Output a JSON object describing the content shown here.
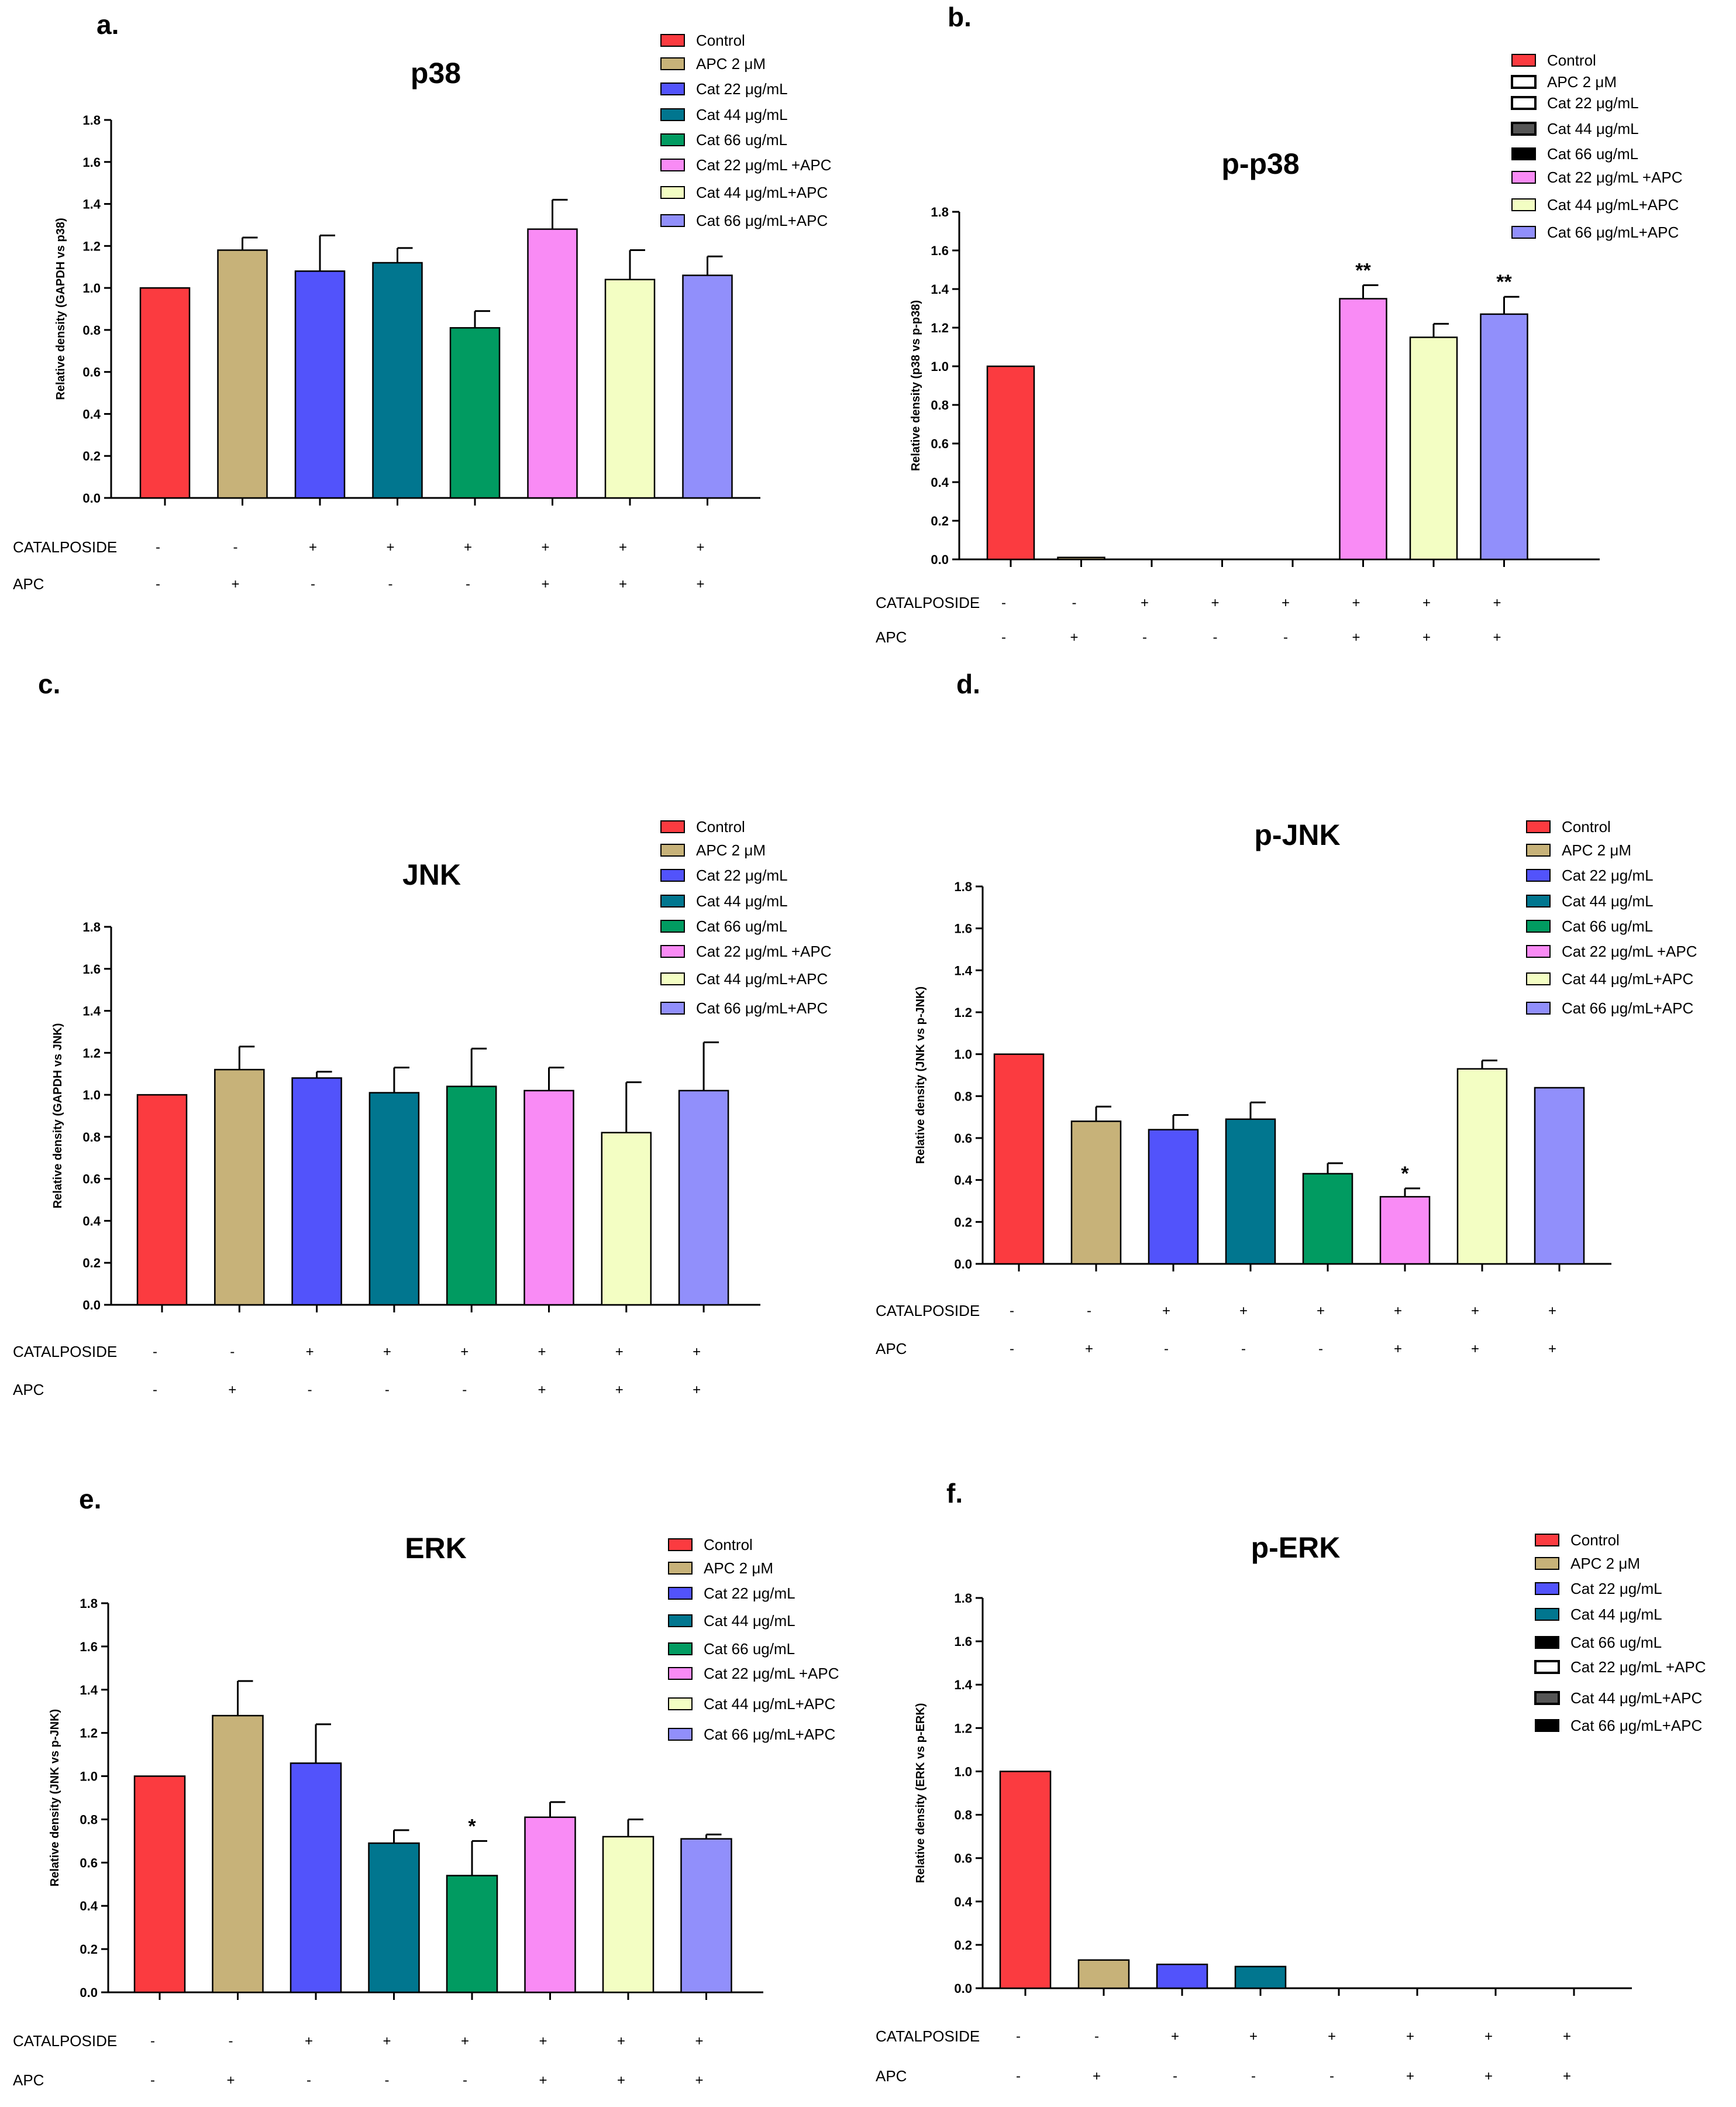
{
  "figure": {
    "categories": [
      "Control",
      "APC 2 μM",
      "Cat 22 μg/mL",
      "Cat 44 μg/mL",
      "Cat 66 ug/mL",
      "Cat 22 μg/mL +APC",
      "Cat 44 μg/mL+APC",
      "Cat 66 μg/mL+APC"
    ],
    "colors": {
      "control": "#fb3b40",
      "apc": "#c7b279",
      "cat22": "#5253fb",
      "cat44": "#01768f",
      "cat66": "#019b61",
      "cat22_apc": "#f98bf5",
      "cat44_apc": "#f3fec3",
      "cat66_apc": "#918ffb",
      "outline": "#000000"
    },
    "row_labels": {
      "catalposide": "CATALPOSIDE",
      "apc": "APC"
    },
    "catalposide_signs": [
      "-",
      "-",
      "+",
      "+",
      "+",
      "+",
      "+",
      "+"
    ],
    "apc_signs": [
      "-",
      "+",
      "-",
      "-",
      "-",
      "+",
      "+",
      "+"
    ]
  },
  "chart_data": [
    {
      "panel": "a.",
      "type": "bar",
      "title": "p38",
      "ylabel": "Relative density (GAPDH vs p38)",
      "ylim": [
        0,
        1.8
      ],
      "yticks": [
        "0.0",
        "0.2",
        "0.4",
        "0.6",
        "0.8",
        "1.0",
        "1.2",
        "1.4",
        "1.6",
        "1.8"
      ],
      "values": [
        1.0,
        1.18,
        1.08,
        1.12,
        0.81,
        1.28,
        1.04,
        1.06
      ],
      "errors": [
        0,
        0.06,
        0.17,
        0.07,
        0.08,
        0.14,
        0.14,
        0.09
      ],
      "annotations": [
        "",
        "",
        "",
        "",
        "",
        "",
        "",
        ""
      ],
      "legend_styles": [
        "fill",
        "fill",
        "fill",
        "fill",
        "fill",
        "fill",
        "fill",
        "fill"
      ]
    },
    {
      "panel": "b.",
      "type": "bar",
      "title": "p-p38",
      "ylabel": "Relative density (p38 vs p-p38)",
      "ylim": [
        0,
        1.8
      ],
      "yticks": [
        "0.0",
        "0.2",
        "0.4",
        "0.6",
        "0.8",
        "1.0",
        "1.2",
        "1.4",
        "1.6",
        "1.8"
      ],
      "values": [
        1.0,
        0.01,
        0,
        0,
        0,
        1.35,
        1.15,
        1.27
      ],
      "errors": [
        0,
        0,
        0,
        0,
        0,
        0.07,
        0.07,
        0.09
      ],
      "annotations": [
        "",
        "",
        "",
        "",
        "",
        "**",
        "",
        "**"
      ],
      "legend_styles": [
        "fill",
        "outline",
        "outline",
        "dark",
        "black",
        "fill",
        "fill",
        "fill"
      ]
    },
    {
      "panel": "c.",
      "type": "bar",
      "title": "JNK",
      "ylabel": "Relative density (GAPDH vs JNK)",
      "ylim": [
        0,
        1.8
      ],
      "yticks": [
        "0.0",
        "0.2",
        "0.4",
        "0.6",
        "0.8",
        "1.0",
        "1.2",
        "1.4",
        "1.6",
        "1.8"
      ],
      "values": [
        1.0,
        1.12,
        1.08,
        1.01,
        1.04,
        1.02,
        0.82,
        1.02
      ],
      "errors": [
        0,
        0.11,
        0.03,
        0.12,
        0.18,
        0.11,
        0.24,
        0.23
      ],
      "annotations": [
        "",
        "",
        "",
        "",
        "",
        "",
        "",
        ""
      ],
      "legend_styles": [
        "fill",
        "fill",
        "fill",
        "fill",
        "fill",
        "fill",
        "fill",
        "fill"
      ]
    },
    {
      "panel": "d.",
      "type": "bar",
      "title": "p-JNK",
      "ylabel": "Relative density (JNK vs p-JNK)",
      "ylim": [
        0,
        1.8
      ],
      "yticks": [
        "0.0",
        "0.2",
        "0.4",
        "0.6",
        "0.8",
        "1.0",
        "1.2",
        "1.4",
        "1.6",
        "1.8"
      ],
      "values": [
        1.0,
        0.68,
        0.64,
        0.69,
        0.43,
        0.32,
        0.93,
        0.84
      ],
      "errors": [
        0,
        0.07,
        0.07,
        0.08,
        0.05,
        0.04,
        0.04,
        0
      ],
      "annotations": [
        "",
        "",
        "",
        "",
        "",
        "*",
        "",
        ""
      ],
      "legend_styles": [
        "fill",
        "fill",
        "fill",
        "fill",
        "fill",
        "fill",
        "fill",
        "fill"
      ]
    },
    {
      "panel": "e.",
      "type": "bar",
      "title": "ERK",
      "ylabel": "Relative density (JNK vs p-JNK)",
      "ylim": [
        0,
        1.8
      ],
      "yticks": [
        "0.0",
        "0.2",
        "0.4",
        "0.6",
        "0.8",
        "1.0",
        "1.2",
        "1.4",
        "1.6",
        "1.8"
      ],
      "values": [
        1.0,
        1.28,
        1.06,
        0.69,
        0.54,
        0.81,
        0.72,
        0.71
      ],
      "errors": [
        0,
        0.16,
        0.18,
        0.06,
        0.16,
        0.07,
        0.08,
        0.02
      ],
      "annotations": [
        "",
        "",
        "",
        "",
        "*",
        "",
        "",
        ""
      ],
      "legend_styles": [
        "fill",
        "fill",
        "fill",
        "fill",
        "fill",
        "fill",
        "fill",
        "fill"
      ]
    },
    {
      "panel": "f.",
      "type": "bar",
      "title": "p-ERK",
      "ylabel": "Relative density (ERK vs p-ERK)",
      "ylim": [
        0,
        1.8
      ],
      "yticks": [
        "0.0",
        "0.2",
        "0.4",
        "0.6",
        "0.8",
        "1.0",
        "1.2",
        "1.4",
        "1.6",
        "1.8"
      ],
      "values": [
        1.0,
        0.13,
        0.11,
        0.1,
        0,
        0,
        0,
        0
      ],
      "errors": [
        0,
        0,
        0,
        0,
        0,
        0,
        0,
        0
      ],
      "annotations": [
        "",
        "",
        "",
        "",
        "",
        "",
        "",
        ""
      ],
      "legend_styles": [
        "fill",
        "fill",
        "fill",
        "fill",
        "black",
        "outline",
        "dark",
        "black"
      ]
    }
  ]
}
